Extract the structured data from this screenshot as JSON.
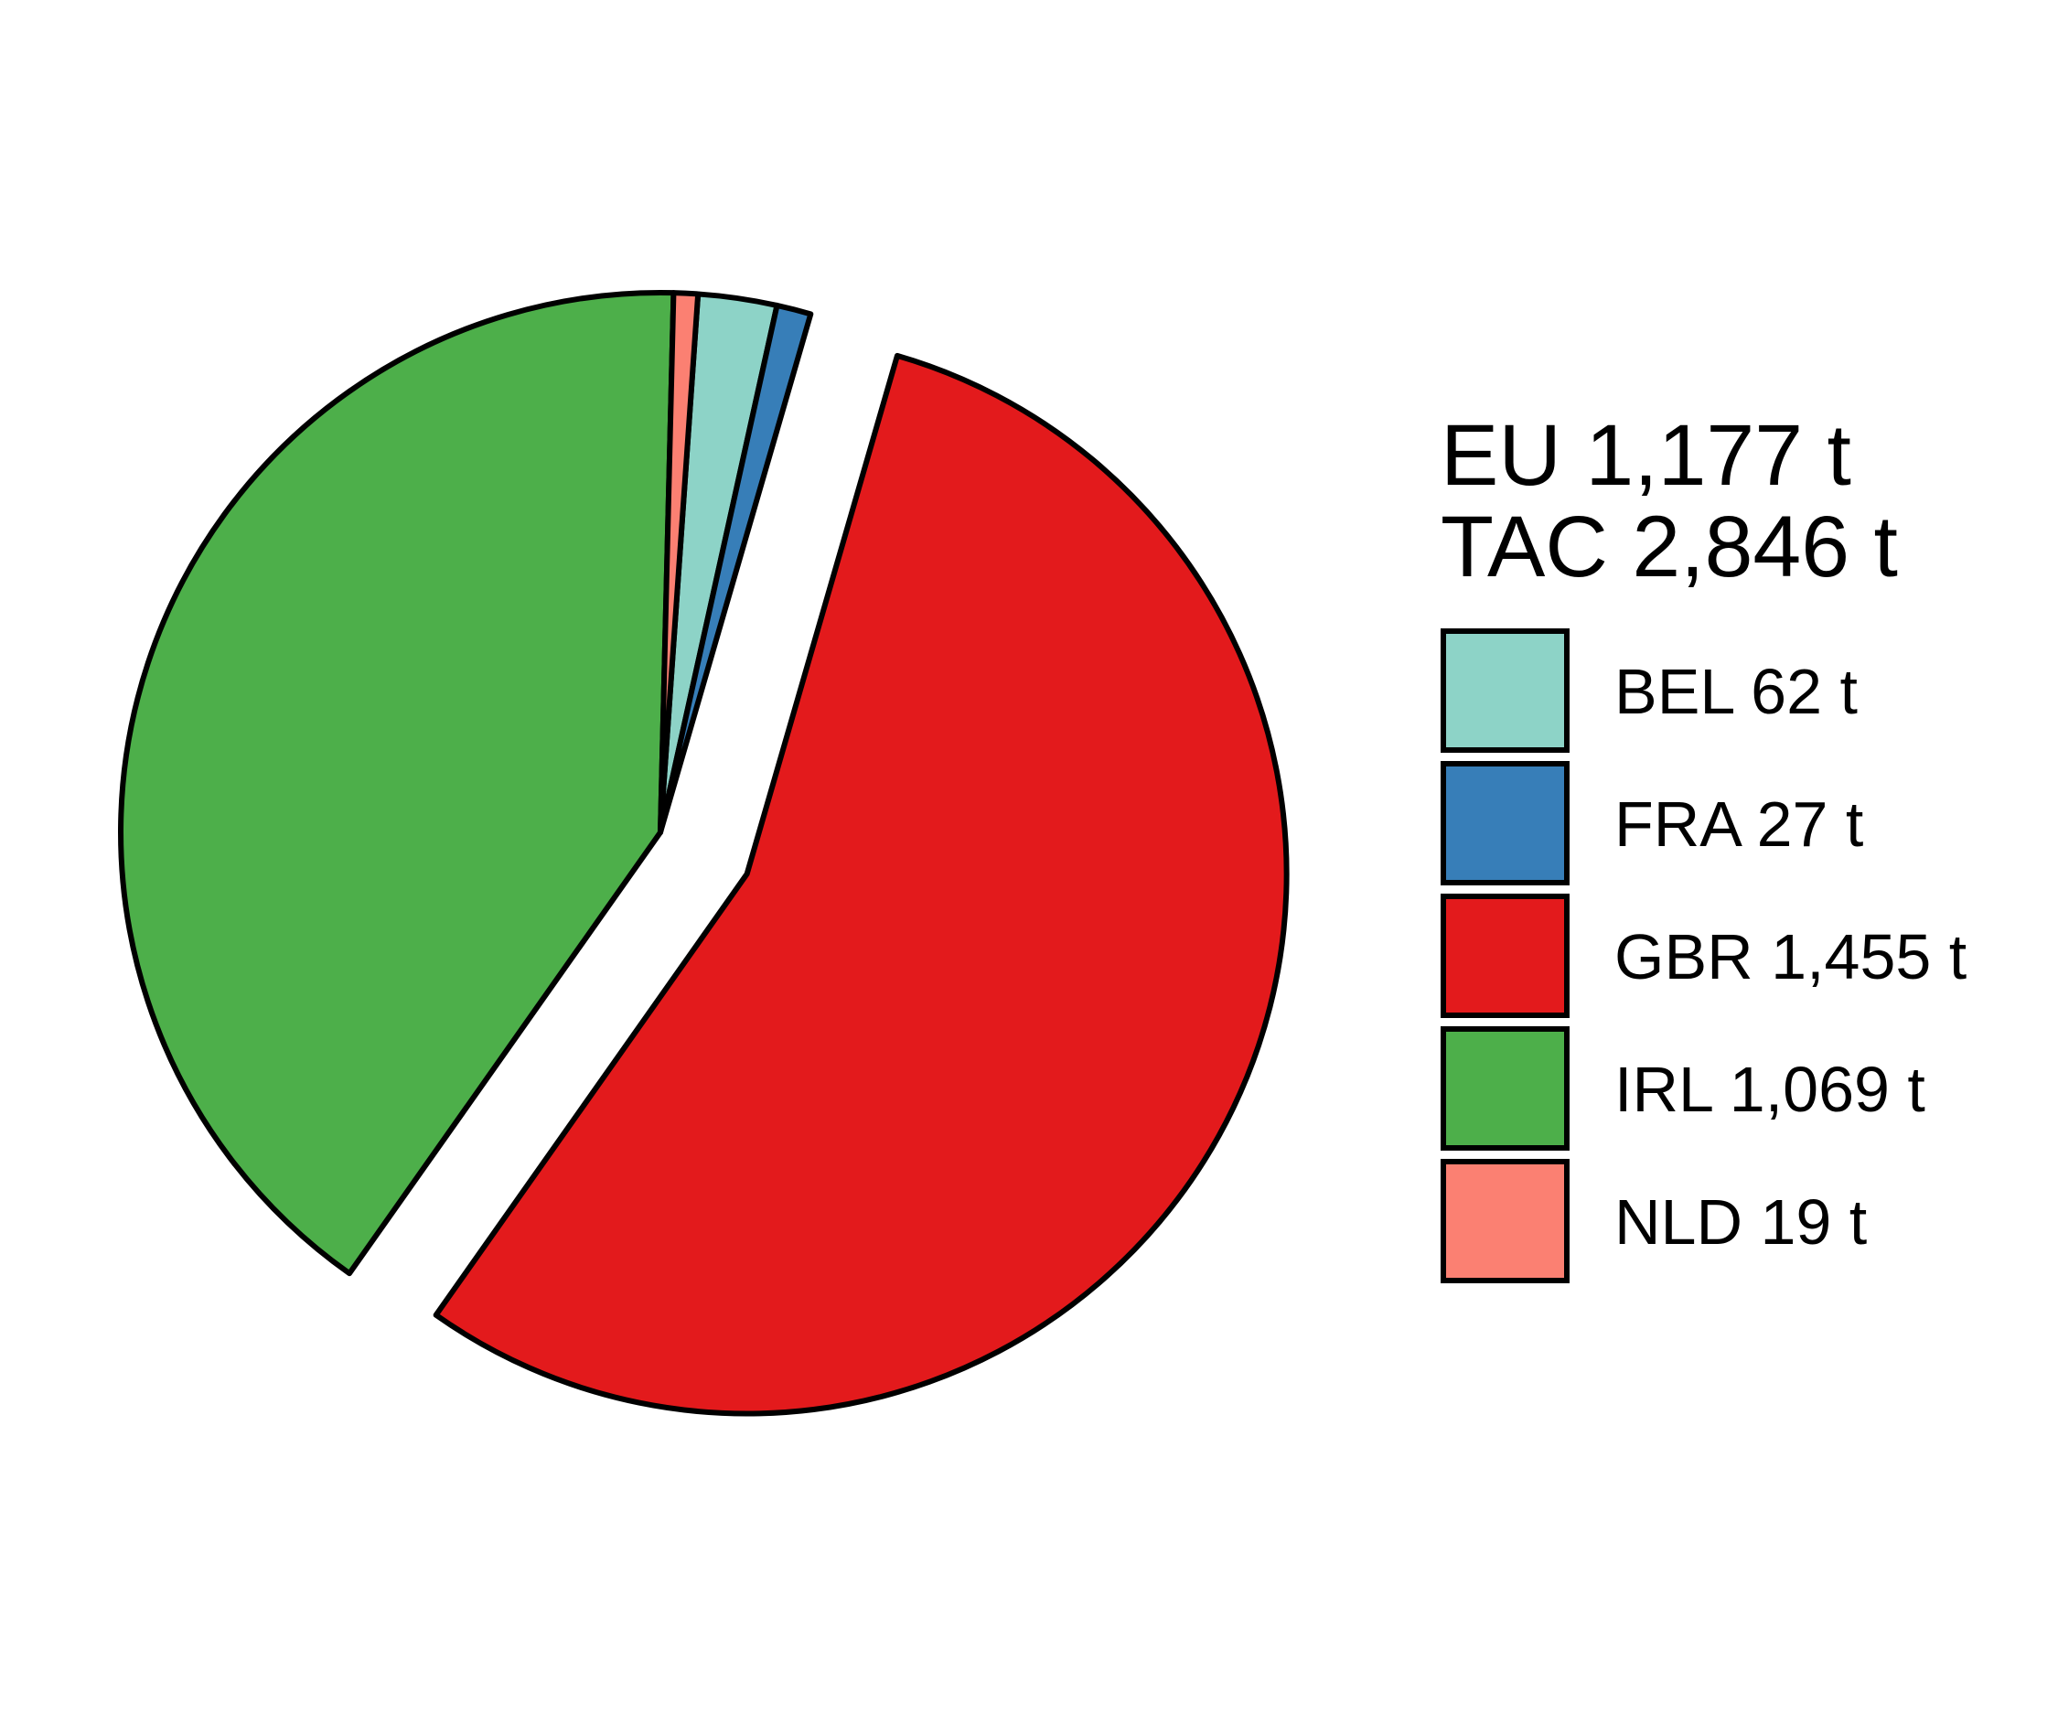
{
  "chart_data": {
    "type": "pie",
    "exploded_slice": "GBR",
    "start_angle_deg": 86,
    "direction": "clockwise",
    "legend_position": "right",
    "summary": {
      "eu_label": "EU 1,177 t",
      "tac_label": "TAC 2,846 t"
    },
    "slices": [
      {
        "category": "BEL",
        "value": 62,
        "label": "BEL 62 t",
        "color": "#8DD3C7"
      },
      {
        "category": "FRA",
        "value": 27,
        "label": "FRA 27 t",
        "color": "#377EB8"
      },
      {
        "category": "GBR",
        "value": 1455,
        "label": "GBR 1,455 t",
        "color": "#E31A1C"
      },
      {
        "category": "IRL",
        "value": 1069,
        "label": "IRL 1,069 t",
        "color": "#4DAF4A"
      },
      {
        "category": "NLD",
        "value": 19,
        "label": "NLD 19 t",
        "color": "#FB8072"
      }
    ]
  }
}
